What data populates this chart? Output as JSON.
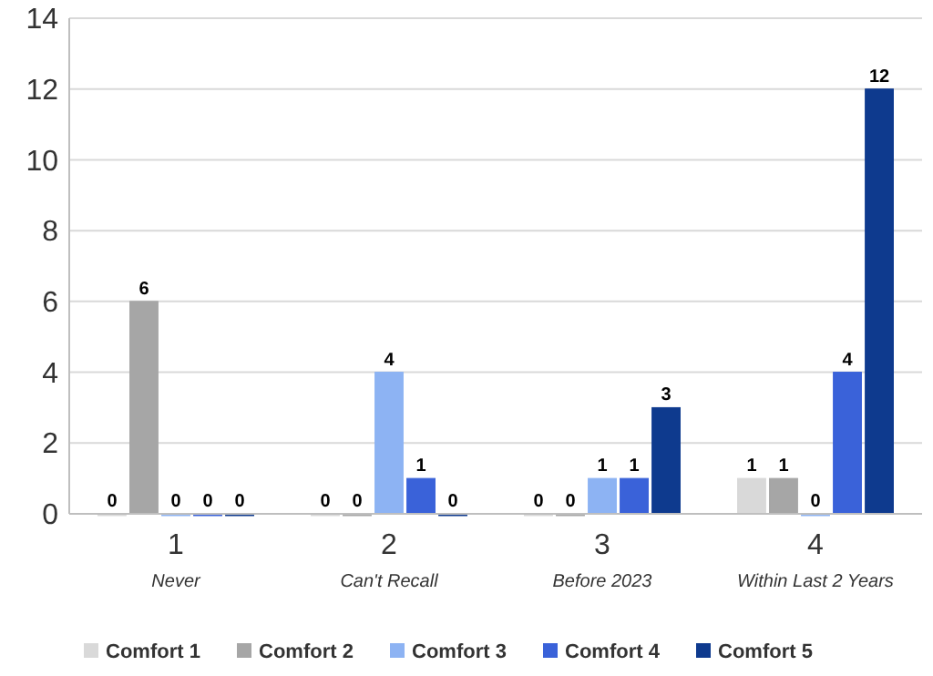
{
  "chart_data": {
    "type": "bar",
    "categories": [
      "1\nNever",
      "2\nCan't Recall",
      "3\nBefore 2023",
      "4\nWithin Last 2 Years"
    ],
    "series": [
      {
        "name": "Comfort 1",
        "color": "#d9d9d9",
        "values": [
          0,
          0,
          0,
          1
        ]
      },
      {
        "name": "Comfort 2",
        "color": "#a6a6a6",
        "values": [
          6,
          0,
          0,
          1
        ]
      },
      {
        "name": "Comfort 3",
        "color": "#8db3f3",
        "values": [
          0,
          4,
          1,
          0
        ]
      },
      {
        "name": "Comfort 4",
        "color": "#3a62d9",
        "values": [
          0,
          1,
          1,
          4
        ]
      },
      {
        "name": "Comfort 5",
        "color": "#0e3a8e",
        "values": [
          0,
          0,
          3,
          12
        ]
      }
    ],
    "ylim": [
      0,
      14
    ],
    "yticks": [
      0,
      2,
      4,
      6,
      8,
      10,
      12,
      14
    ],
    "grid": "y",
    "legend": "bottom",
    "data_labels": true
  }
}
